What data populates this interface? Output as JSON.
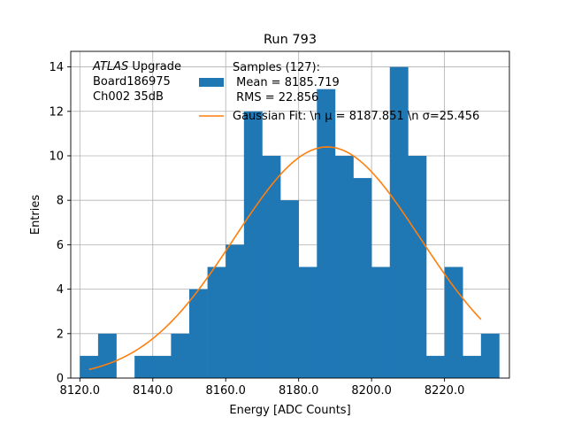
{
  "chart_data": {
    "type": "bar",
    "title": "Run 793",
    "xlabel": "Energy [ADC Counts]",
    "ylabel": "Entries",
    "xlim": [
      8117.5,
      8237.8
    ],
    "ylim": [
      0,
      14.7
    ],
    "grid": true,
    "xticks": [
      8120,
      8140,
      8160,
      8180,
      8200,
      8220
    ],
    "xtick_labels": [
      "8120.0",
      "8140.0",
      "8160.0",
      "8180.0",
      "8200.0",
      "8220.0"
    ],
    "yticks": [
      0,
      2,
      4,
      6,
      8,
      10,
      12,
      14
    ],
    "ytick_labels": [
      "0",
      "2",
      "4",
      "6",
      "8",
      "10",
      "12",
      "14"
    ],
    "histogram": {
      "bin_start": 8120.0,
      "bin_width": 5.0,
      "counts": [
        1,
        2,
        0,
        1,
        1,
        2,
        4,
        5,
        6,
        12,
        10,
        8,
        5,
        13,
        10,
        9,
        5,
        14,
        10,
        1,
        5,
        1,
        2
      ],
      "color": "#1f77b4"
    },
    "fit_curve": {
      "type": "gaussian",
      "x_range": [
        8122.5,
        8230.0
      ],
      "mu": 8187.851,
      "sigma": 25.456,
      "peak": 10.4,
      "color": "#ff7f0e"
    },
    "legend": {
      "placement": "top-right",
      "entries": [
        {
          "kind": "bar",
          "lines": [
            "Samples (127):",
            " Mean = 8185.719",
            " RMS = 22.856"
          ]
        },
        {
          "kind": "line",
          "lines": [
            "Gaussian Fit: \\n μ = 8187.851 \\n σ=25.456"
          ]
        }
      ]
    },
    "annotation": {
      "italic": "ATLAS",
      "text": " Upgrade",
      "lines": [
        " Board186975",
        " Ch002 35dB"
      ]
    }
  }
}
